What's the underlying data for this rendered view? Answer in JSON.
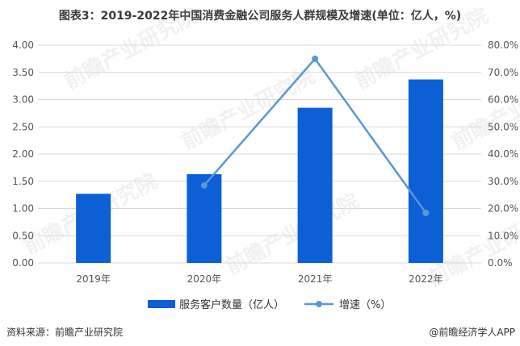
{
  "title": "图表3：2019-2022年中国消费金融公司服务人群规模及增速(单位：亿人，%)",
  "source": "资料来源：前瞻产业研究院",
  "brand": "@前瞻经济学人APP",
  "watermark": "前瞻产业研究院",
  "colors": {
    "bar": "#0d5fd6",
    "line": "#5a98d4",
    "grid": "#d9d9d9",
    "axis_text": "#555555"
  },
  "chart_data": {
    "type": "bar",
    "categories": [
      "2019年",
      "2020年",
      "2021年",
      "2022年"
    ],
    "series": [
      {
        "name": "服务客户数量（亿人）",
        "type": "bar",
        "axis": "left",
        "values": [
          1.27,
          1.63,
          2.85,
          3.37
        ]
      },
      {
        "name": "增速（%）",
        "type": "line",
        "axis": "right",
        "values": [
          null,
          28.5,
          75.0,
          18.4
        ]
      }
    ],
    "ylim_left": [
      0,
      4
    ],
    "yticks_left": [
      "0.00",
      "0.50",
      "1.00",
      "1.50",
      "2.00",
      "2.50",
      "3.00",
      "3.50",
      "4.00"
    ],
    "ylim_right": [
      0,
      80
    ],
    "yticks_right": [
      "0.0%",
      "10.0%",
      "20.0%",
      "30.0%",
      "40.0%",
      "50.0%",
      "60.0%",
      "70.0%",
      "80.0%"
    ],
    "grid": true,
    "legend_position": "bottom"
  }
}
